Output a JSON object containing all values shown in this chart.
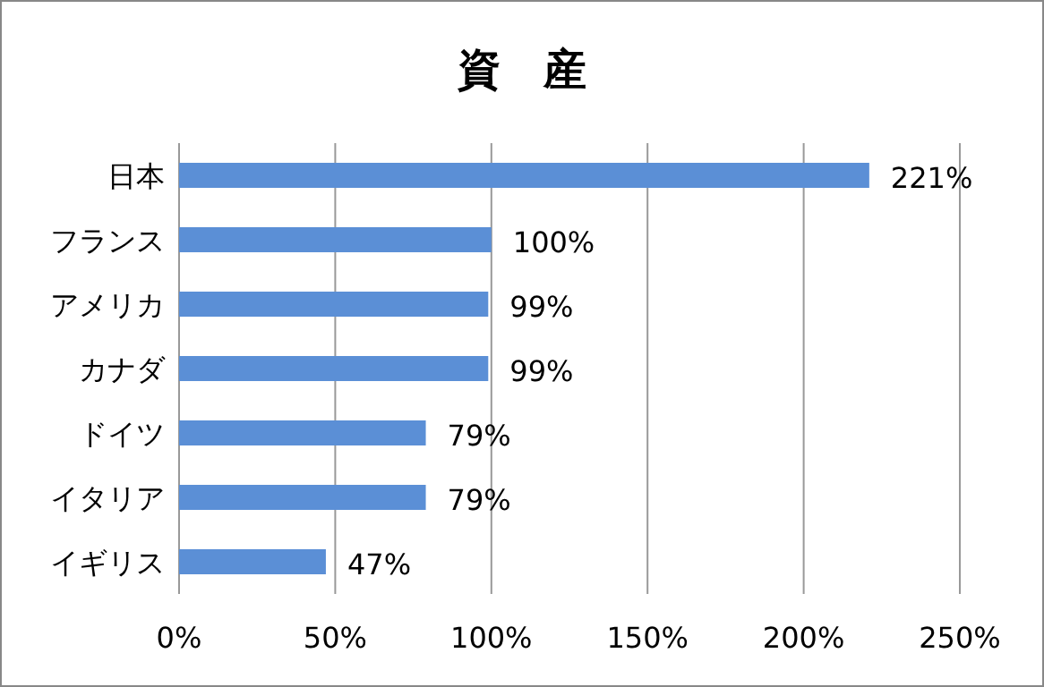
{
  "chart_data": {
    "type": "bar",
    "orientation": "horizontal",
    "title": "資　産",
    "categories": [
      "日本",
      "フランス",
      "アメリカ",
      "カナダ",
      "ドイツ",
      "イタリア",
      "イギリス"
    ],
    "values": [
      221,
      100,
      99,
      99,
      79,
      79,
      47
    ],
    "value_labels": [
      "221%",
      "100%",
      "99%",
      "99%",
      "79%",
      "79%",
      "47%"
    ],
    "color": "#5b8fd6",
    "xlim": [
      0,
      250
    ],
    "xticks": [
      {
        "value": 0,
        "label": "0%"
      },
      {
        "value": 50,
        "label": "50%"
      },
      {
        "value": 100,
        "label": "100%"
      },
      {
        "value": 150,
        "label": "150%"
      },
      {
        "value": 200,
        "label": "200%"
      },
      {
        "value": 250,
        "label": "250%"
      }
    ],
    "grid": "x"
  }
}
